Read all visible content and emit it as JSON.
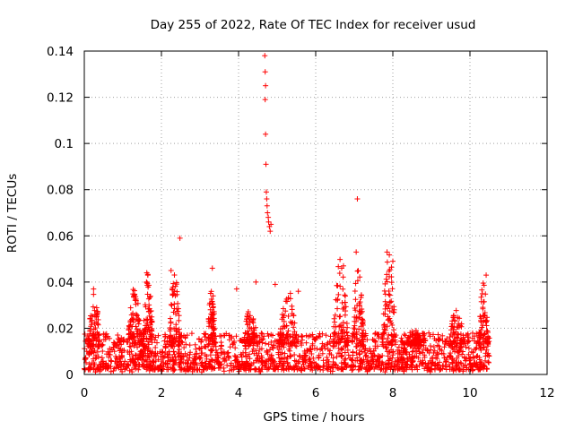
{
  "chart_data": {
    "type": "scatter",
    "title": "Day 255 of 2022, Rate Of TEC Index for receiver usud",
    "xlabel": "GPS time / hours",
    "ylabel": "ROTI / TECUs",
    "xlim": [
      0,
      12
    ],
    "ylim": [
      0,
      0.14
    ],
    "xticks": [
      0,
      2,
      4,
      6,
      8,
      10,
      12
    ],
    "yticks": [
      0,
      0.02,
      0.04,
      0.06,
      0.08,
      0.1,
      0.12,
      0.14
    ],
    "xtick_labels": [
      "0",
      "2",
      "4",
      "6",
      "8",
      "10",
      "12"
    ],
    "ytick_labels": [
      "0",
      "0.02",
      "0.04",
      "0.06",
      "0.08",
      "0.1",
      "0.12",
      "0.14"
    ],
    "grid": true,
    "marker": "+",
    "color": "#ff0000",
    "data_range_hours": [
      0.0,
      10.5
    ],
    "baseline_range": [
      0.002,
      0.018
    ],
    "spike": {
      "x": [
        4.68,
        4.69,
        4.7,
        4.69,
        4.7,
        4.71,
        4.72,
        4.73,
        4.74,
        4.75,
        4.77,
        4.78,
        4.8,
        4.82,
        4.84
      ],
      "y": [
        0.138,
        0.131,
        0.125,
        0.119,
        0.104,
        0.091,
        0.079,
        0.076,
        0.073,
        0.07,
        0.068,
        0.066,
        0.064,
        0.062,
        0.065
      ]
    },
    "outliers": {
      "x": [
        2.48,
        7.08,
        3.32,
        8.0,
        7.85,
        6.72,
        2.25,
        1.62,
        4.45,
        4.95,
        10.42,
        0.24,
        7.05,
        3.95,
        5.55
      ],
      "y": [
        0.059,
        0.076,
        0.046,
        0.049,
        0.053,
        0.047,
        0.045,
        0.044,
        0.04,
        0.039,
        0.043,
        0.037,
        0.053,
        0.037,
        0.036
      ]
    },
    "activity_clusters": [
      {
        "center": 0.25,
        "width": 0.3,
        "peak": 0.036
      },
      {
        "center": 1.3,
        "width": 0.35,
        "peak": 0.038
      },
      {
        "center": 1.65,
        "width": 0.25,
        "peak": 0.044
      },
      {
        "center": 2.35,
        "width": 0.3,
        "peak": 0.044
      },
      {
        "center": 3.3,
        "width": 0.2,
        "peak": 0.038
      },
      {
        "center": 4.3,
        "width": 0.4,
        "peak": 0.028
      },
      {
        "center": 5.3,
        "width": 0.5,
        "peak": 0.036
      },
      {
        "center": 6.65,
        "width": 0.4,
        "peak": 0.052
      },
      {
        "center": 7.1,
        "width": 0.3,
        "peak": 0.046
      },
      {
        "center": 7.9,
        "width": 0.35,
        "peak": 0.052
      },
      {
        "center": 8.55,
        "width": 0.4,
        "peak": 0.02
      },
      {
        "center": 9.65,
        "width": 0.4,
        "peak": 0.028
      },
      {
        "center": 10.35,
        "width": 0.25,
        "peak": 0.04
      }
    ]
  }
}
